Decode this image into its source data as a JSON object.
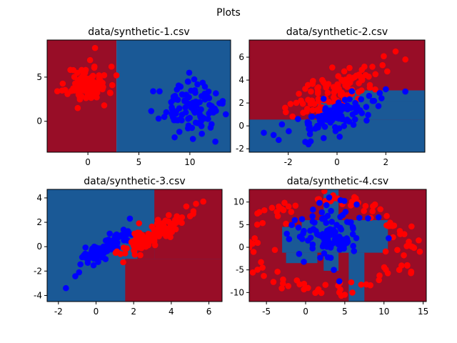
{
  "figure": {
    "title": "Plots"
  },
  "colors": {
    "region_red": "#980d27",
    "region_blue": "#1a5996",
    "point_red": "#ff0000",
    "point_blue": "#0000ff"
  },
  "chart_data": [
    {
      "type": "scatter",
      "title": "data/synthetic-1.csv",
      "xlim": [
        -4,
        14
      ],
      "ylim": [
        -3.5,
        9.2
      ],
      "xticks": [
        0,
        5,
        10
      ],
      "yticks": [
        0,
        5
      ],
      "regions": [
        {
          "class": "red",
          "rect": [
            -4,
            2.8,
            -3.5,
            9.2
          ]
        },
        {
          "class": "blue",
          "rect": [
            2.8,
            14,
            -3.5,
            9.2
          ]
        }
      ],
      "series": [
        {
          "class": "red",
          "cluster": {
            "n": 100,
            "cx": 0.0,
            "cy": 4.2,
            "sx": 1.0,
            "sy": 1.0,
            "rho": 0.0,
            "seed": 11
          },
          "extra": [
            [
              0.7,
              8.3
            ],
            [
              -3.0,
              3.4
            ],
            [
              2.8,
              5.2
            ],
            [
              -1.0,
              1.5
            ],
            [
              1.6,
              1.8
            ]
          ]
        },
        {
          "class": "blue",
          "cluster": {
            "n": 100,
            "cx": 10.0,
            "cy": 1.5,
            "sx": 1.4,
            "sy": 1.3,
            "rho": 0.0,
            "seed": 23
          },
          "extra": [
            [
              6.4,
              3.4
            ],
            [
              7.5,
              0.5
            ],
            [
              12.5,
              -2.3
            ],
            [
              10.3,
              -2.0
            ],
            [
              13.2,
              2.0
            ],
            [
              9.8,
              4.5
            ]
          ]
        }
      ]
    },
    {
      "type": "scatter",
      "title": "data/synthetic-2.csv",
      "xlim": [
        -3.6,
        3.6
      ],
      "ylim": [
        -2.3,
        7.5
      ],
      "xticks": [
        -2,
        0,
        2
      ],
      "yticks": [
        -2,
        0,
        2,
        4,
        6
      ],
      "regions": [
        {
          "class": "red",
          "rect": [
            -3.6,
            3.6,
            -2.3,
            7.5
          ]
        },
        {
          "class": "blue",
          "rect": [
            -3.6,
            3.6,
            -2.3,
            0.55
          ]
        },
        {
          "class": "blue",
          "rect": [
            -0.8,
            3.6,
            0.55,
            2.1
          ]
        },
        {
          "class": "blue",
          "rect": [
            0.5,
            3.6,
            2.1,
            3.1
          ]
        }
      ],
      "series": [
        {
          "class": "red",
          "cluster": {
            "n": 100,
            "cx": 0.0,
            "cy": 3.2,
            "sx": 0.9,
            "sy": 1.2,
            "rho": 0.7,
            "seed": 37
          },
          "extra": [
            [
              -2.1,
              1.2
            ],
            [
              2.4,
              6.5
            ],
            [
              2.8,
              5.8
            ],
            [
              -0.8,
              1.4
            ],
            [
              1.3,
              4.3
            ]
          ]
        },
        {
          "class": "blue",
          "cluster": {
            "n": 100,
            "cx": 0.0,
            "cy": 1.0,
            "sx": 0.9,
            "sy": 1.0,
            "rho": 0.7,
            "seed": 53
          },
          "extra": [
            [
              -3.0,
              -0.6
            ],
            [
              -2.6,
              -0.8
            ],
            [
              2.8,
              3.0
            ],
            [
              2.0,
              3.2
            ],
            [
              -1.3,
              -1.4
            ],
            [
              -1.6,
              0.6
            ]
          ]
        }
      ]
    },
    {
      "type": "scatter",
      "title": "data/synthetic-3.csv",
      "xlim": [
        -2.6,
        6.7
      ],
      "ylim": [
        -4.5,
        4.7
      ],
      "xticks": [
        -2,
        0,
        2,
        4,
        6
      ],
      "yticks": [
        -4,
        -2,
        0,
        2,
        4
      ],
      "regions": [
        {
          "class": "blue",
          "rect": [
            -2.6,
            6.7,
            -4.5,
            4.7
          ]
        },
        {
          "class": "red",
          "rect": [
            1.55,
            6.7,
            -4.5,
            -1.0
          ]
        },
        {
          "class": "red",
          "rect": [
            3.1,
            6.7,
            -1.0,
            4.7
          ]
        },
        {
          "class": "red",
          "rect": [
            2.2,
            3.1,
            -1.0,
            1.2
          ]
        }
      ],
      "series": [
        {
          "class": "blue",
          "cluster": {
            "n": 100,
            "cx": 0.5,
            "cy": -0.1,
            "sx": 0.75,
            "sy": 0.8,
            "rho": 0.85,
            "seed": 71
          },
          "extra": [
            [
              -1.6,
              -3.4
            ],
            [
              1.8,
              2.3
            ],
            [
              -0.9,
              -2.1
            ]
          ]
        },
        {
          "class": "red",
          "cluster": {
            "n": 100,
            "cx": 3.2,
            "cy": 1.1,
            "sx": 1.0,
            "sy": 1.0,
            "rho": 0.85,
            "seed": 89
          },
          "extra": [
            [
              5.7,
              3.7
            ],
            [
              1.3,
              -0.6
            ],
            [
              5.0,
              2.5
            ],
            [
              4.8,
              3.3
            ]
          ]
        }
      ]
    },
    {
      "type": "scatter",
      "title": "data/synthetic-4.csv",
      "xlim": [
        -7.2,
        15.4
      ],
      "ylim": [
        -12,
        12.8
      ],
      "xticks": [
        -5,
        0,
        5,
        10,
        15
      ],
      "yticks": [
        -10,
        -5,
        0,
        5,
        10
      ],
      "regions": [
        {
          "class": "red",
          "rect": [
            -7.2,
            15.4,
            -12,
            12.8
          ]
        },
        {
          "class": "blue",
          "rect": [
            2.3,
            4.2,
            6.0,
            12.8
          ]
        },
        {
          "class": "blue",
          "rect": [
            -0.5,
            10.5,
            -1.2,
            6.0
          ]
        },
        {
          "class": "blue",
          "rect": [
            -3.0,
            1.5,
            -1.2,
            4.5
          ]
        },
        {
          "class": "blue",
          "rect": [
            -2.5,
            1.5,
            -3.5,
            -1.2
          ]
        },
        {
          "class": "blue",
          "rect": [
            2.3,
            4.2,
            -5.2,
            -1.2
          ]
        },
        {
          "class": "blue",
          "rect": [
            5.5,
            7.5,
            -12,
            -1.2
          ]
        }
      ],
      "series": [
        {
          "class": "red",
          "ring": {
            "n": 110,
            "cx": 3.0,
            "cy": 0.5,
            "r": 9.5,
            "jitter": 1.2,
            "seed": 97
          },
          "extra": [
            [
              5.0,
              -10.5
            ],
            [
              -6.5,
              2.0
            ],
            [
              13.5,
              0.2
            ],
            [
              3.2,
              10.2
            ],
            [
              -5.5,
              -4.5
            ]
          ]
        },
        {
          "class": "blue",
          "cluster": {
            "n": 100,
            "cx": 3.0,
            "cy": 3.0,
            "sx": 2.2,
            "sy": 3.0,
            "rho": 0.0,
            "seed": 113
          },
          "extra": [
            [
              10.6,
              2.0
            ],
            [
              3.6,
              -5.0
            ],
            [
              -2.4,
              3.0
            ],
            [
              3.0,
              11.0
            ]
          ]
        }
      ]
    }
  ]
}
